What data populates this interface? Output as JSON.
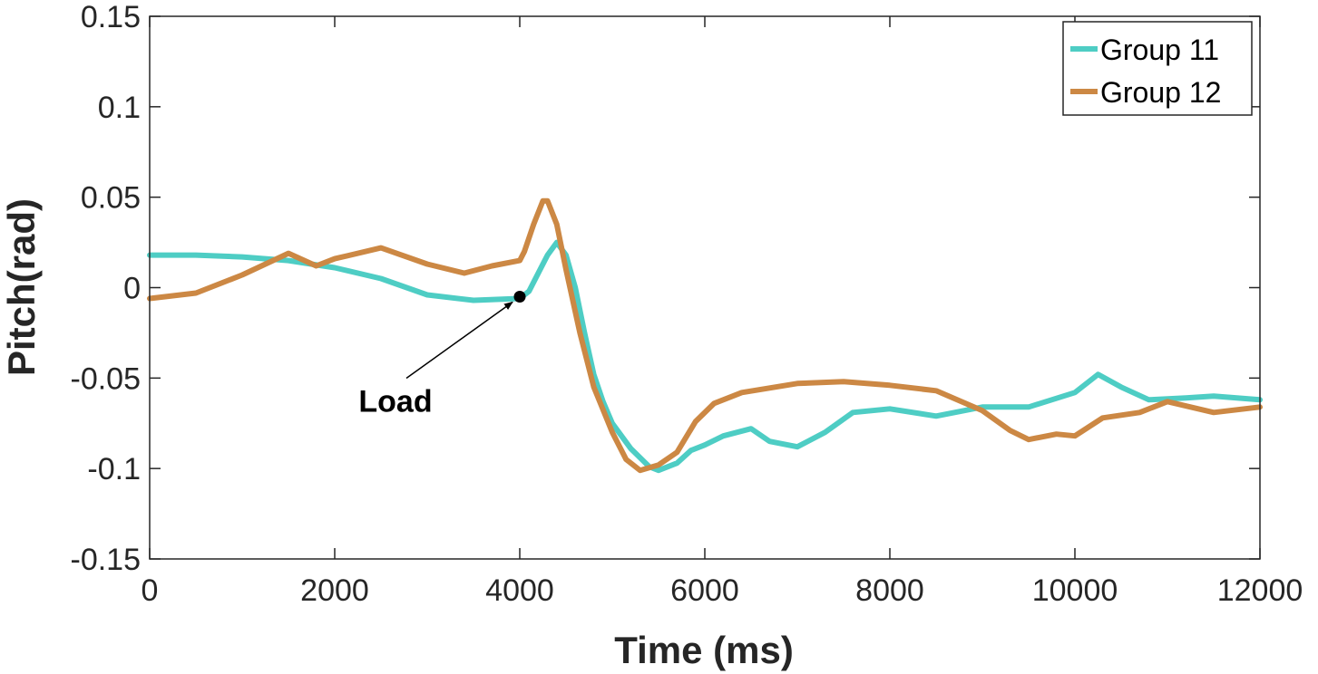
{
  "chart_data": {
    "type": "line",
    "xlabel": "Time (ms)",
    "ylabel": "Pitch(rad)",
    "xlim": [
      0,
      12000
    ],
    "ylim": [
      -0.15,
      0.15
    ],
    "xticks": [
      0,
      2000,
      4000,
      6000,
      8000,
      10000,
      12000
    ],
    "xtick_labels": [
      "0",
      "2000",
      "4000",
      "6000",
      "8000",
      "10000",
      "12000"
    ],
    "yticks": [
      0.15,
      0.1,
      0.05,
      0,
      -0.05,
      -0.1,
      -0.15
    ],
    "ytick_labels": [
      "0.15",
      "0.1",
      "0.05",
      "0",
      "-0.05",
      "-0.1",
      "-0.15"
    ],
    "grid": false,
    "legend_position": "top-right",
    "series": [
      {
        "name": "Group 11",
        "color": "#4ECDC4",
        "points": [
          [
            0,
            0.018
          ],
          [
            500,
            0.018
          ],
          [
            1000,
            0.017
          ],
          [
            1500,
            0.015
          ],
          [
            2000,
            0.011
          ],
          [
            2500,
            0.005
          ],
          [
            3000,
            -0.004
          ],
          [
            3500,
            -0.007
          ],
          [
            4000,
            -0.006
          ],
          [
            4100,
            -0.002
          ],
          [
            4200,
            0.008
          ],
          [
            4300,
            0.018
          ],
          [
            4400,
            0.025
          ],
          [
            4500,
            0.018
          ],
          [
            4600,
            0.0
          ],
          [
            4700,
            -0.025
          ],
          [
            4800,
            -0.048
          ],
          [
            4900,
            -0.063
          ],
          [
            5000,
            -0.075
          ],
          [
            5200,
            -0.089
          ],
          [
            5400,
            -0.099
          ],
          [
            5500,
            -0.101
          ],
          [
            5700,
            -0.097
          ],
          [
            5850,
            -0.09
          ],
          [
            6000,
            -0.087
          ],
          [
            6200,
            -0.082
          ],
          [
            6500,
            -0.078
          ],
          [
            6700,
            -0.085
          ],
          [
            7000,
            -0.088
          ],
          [
            7300,
            -0.08
          ],
          [
            7600,
            -0.069
          ],
          [
            8000,
            -0.067
          ],
          [
            8500,
            -0.071
          ],
          [
            9000,
            -0.066
          ],
          [
            9500,
            -0.066
          ],
          [
            10000,
            -0.058
          ],
          [
            10250,
            -0.048
          ],
          [
            10500,
            -0.055
          ],
          [
            10800,
            -0.062
          ],
          [
            11200,
            -0.061
          ],
          [
            11500,
            -0.06
          ],
          [
            12000,
            -0.062
          ]
        ]
      },
      {
        "name": "Group 12",
        "color": "#CC8844",
        "points": [
          [
            0,
            -0.006
          ],
          [
            500,
            -0.003
          ],
          [
            1000,
            0.007
          ],
          [
            1500,
            0.019
          ],
          [
            1800,
            0.012
          ],
          [
            2000,
            0.016
          ],
          [
            2500,
            0.022
          ],
          [
            3000,
            0.013
          ],
          [
            3400,
            0.008
          ],
          [
            3700,
            0.012
          ],
          [
            4000,
            0.015
          ],
          [
            4050,
            0.02
          ],
          [
            4150,
            0.035
          ],
          [
            4250,
            0.048
          ],
          [
            4300,
            0.048
          ],
          [
            4400,
            0.035
          ],
          [
            4500,
            0.01
          ],
          [
            4650,
            -0.025
          ],
          [
            4800,
            -0.055
          ],
          [
            5000,
            -0.08
          ],
          [
            5150,
            -0.095
          ],
          [
            5300,
            -0.101
          ],
          [
            5500,
            -0.098
          ],
          [
            5700,
            -0.091
          ],
          [
            5900,
            -0.074
          ],
          [
            6100,
            -0.064
          ],
          [
            6400,
            -0.058
          ],
          [
            7000,
            -0.053
          ],
          [
            7500,
            -0.052
          ],
          [
            8000,
            -0.054
          ],
          [
            8500,
            -0.057
          ],
          [
            9000,
            -0.068
          ],
          [
            9300,
            -0.079
          ],
          [
            9500,
            -0.084
          ],
          [
            9800,
            -0.081
          ],
          [
            10000,
            -0.082
          ],
          [
            10300,
            -0.072
          ],
          [
            10700,
            -0.069
          ],
          [
            11000,
            -0.063
          ],
          [
            11500,
            -0.069
          ],
          [
            12000,
            -0.066
          ]
        ]
      }
    ],
    "annotations": [
      {
        "text": "Load",
        "x": 4000,
        "y": -0.005
      }
    ]
  }
}
